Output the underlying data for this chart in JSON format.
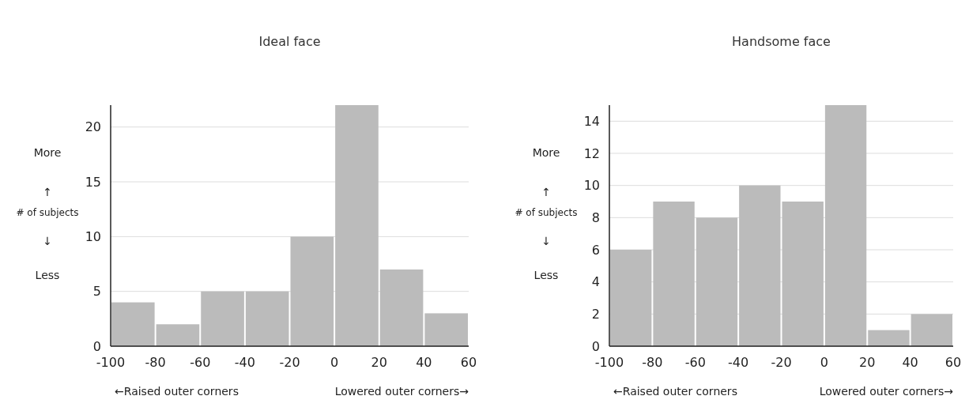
{
  "chart_data": [
    {
      "type": "histogram",
      "title": "Ideal face",
      "ylabel": "More\n↑\n# of subjects\n↓\nLess",
      "bins": [
        -100,
        -80,
        -60,
        -40,
        -20,
        0,
        20,
        40,
        60
      ],
      "values": [
        4,
        2,
        5,
        5,
        10,
        22,
        7,
        3
      ],
      "color": "#bbbbbb",
      "xlim": [
        -100,
        60
      ],
      "xticks": [
        -100,
        -80,
        -60,
        -40,
        -20,
        0,
        20,
        40,
        60
      ],
      "ylim": [
        0,
        22
      ],
      "yticks": [
        0,
        5,
        10,
        15,
        20
      ],
      "grid": "y",
      "annotations": [
        "←Raised outer corners",
        "Lowered outer corners→"
      ]
    },
    {
      "type": "histogram",
      "title": "Handsome face",
      "ylabel": "More\n↑\n# of subjects\n↓\nLess",
      "bins": [
        -100,
        -80,
        -60,
        -40,
        -20,
        0,
        20,
        40,
        60
      ],
      "values": [
        6,
        9,
        8,
        10,
        9,
        15,
        1,
        2
      ],
      "color": "#bbbbbb",
      "xlim": [
        -100,
        60
      ],
      "xticks": [
        -100,
        -80,
        -60,
        -40,
        -20,
        0,
        20,
        40,
        60
      ],
      "ylim": [
        0,
        15
      ],
      "yticks": [
        0,
        2,
        4,
        6,
        8,
        10,
        12,
        14
      ],
      "grid": "y",
      "annotations": [
        "←Raised outer corners",
        "Lowered outer corners→"
      ]
    }
  ]
}
